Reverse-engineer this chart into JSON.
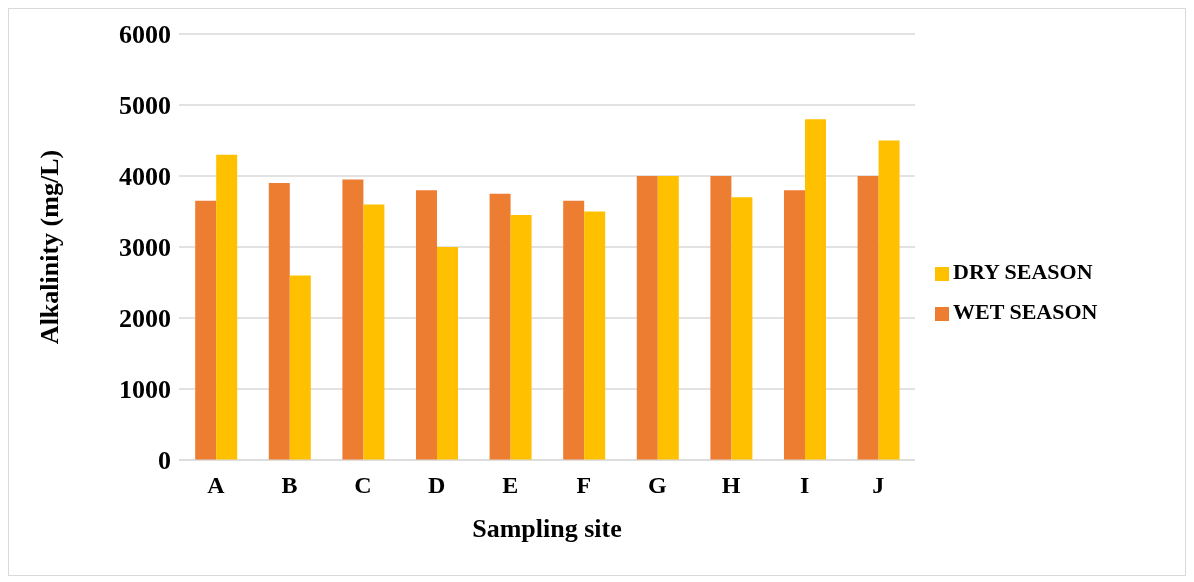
{
  "chart_data": {
    "type": "bar",
    "xlabel": "Sampling site",
    "ylabel": "Alkalinity (mg/L)",
    "categories": [
      "A",
      "B",
      "C",
      "D",
      "E",
      "F",
      "G",
      "H",
      "I",
      "J"
    ],
    "series": [
      {
        "name": "WET SEASON",
        "color": "#ed7d31",
        "values": [
          3650,
          3900,
          3950,
          3800,
          3750,
          3650,
          4000,
          4000,
          3800,
          4000
        ]
      },
      {
        "name": "DRY SEASON",
        "color": "#ffc000",
        "values": [
          4300,
          2600,
          3600,
          3000,
          3450,
          3500,
          4000,
          3700,
          4800,
          4500
        ]
      }
    ],
    "ylim": [
      0,
      6000
    ],
    "yticks": [
      0,
      1000,
      2000,
      3000,
      4000,
      5000,
      6000
    ],
    "grid": "y",
    "legend": "right"
  }
}
